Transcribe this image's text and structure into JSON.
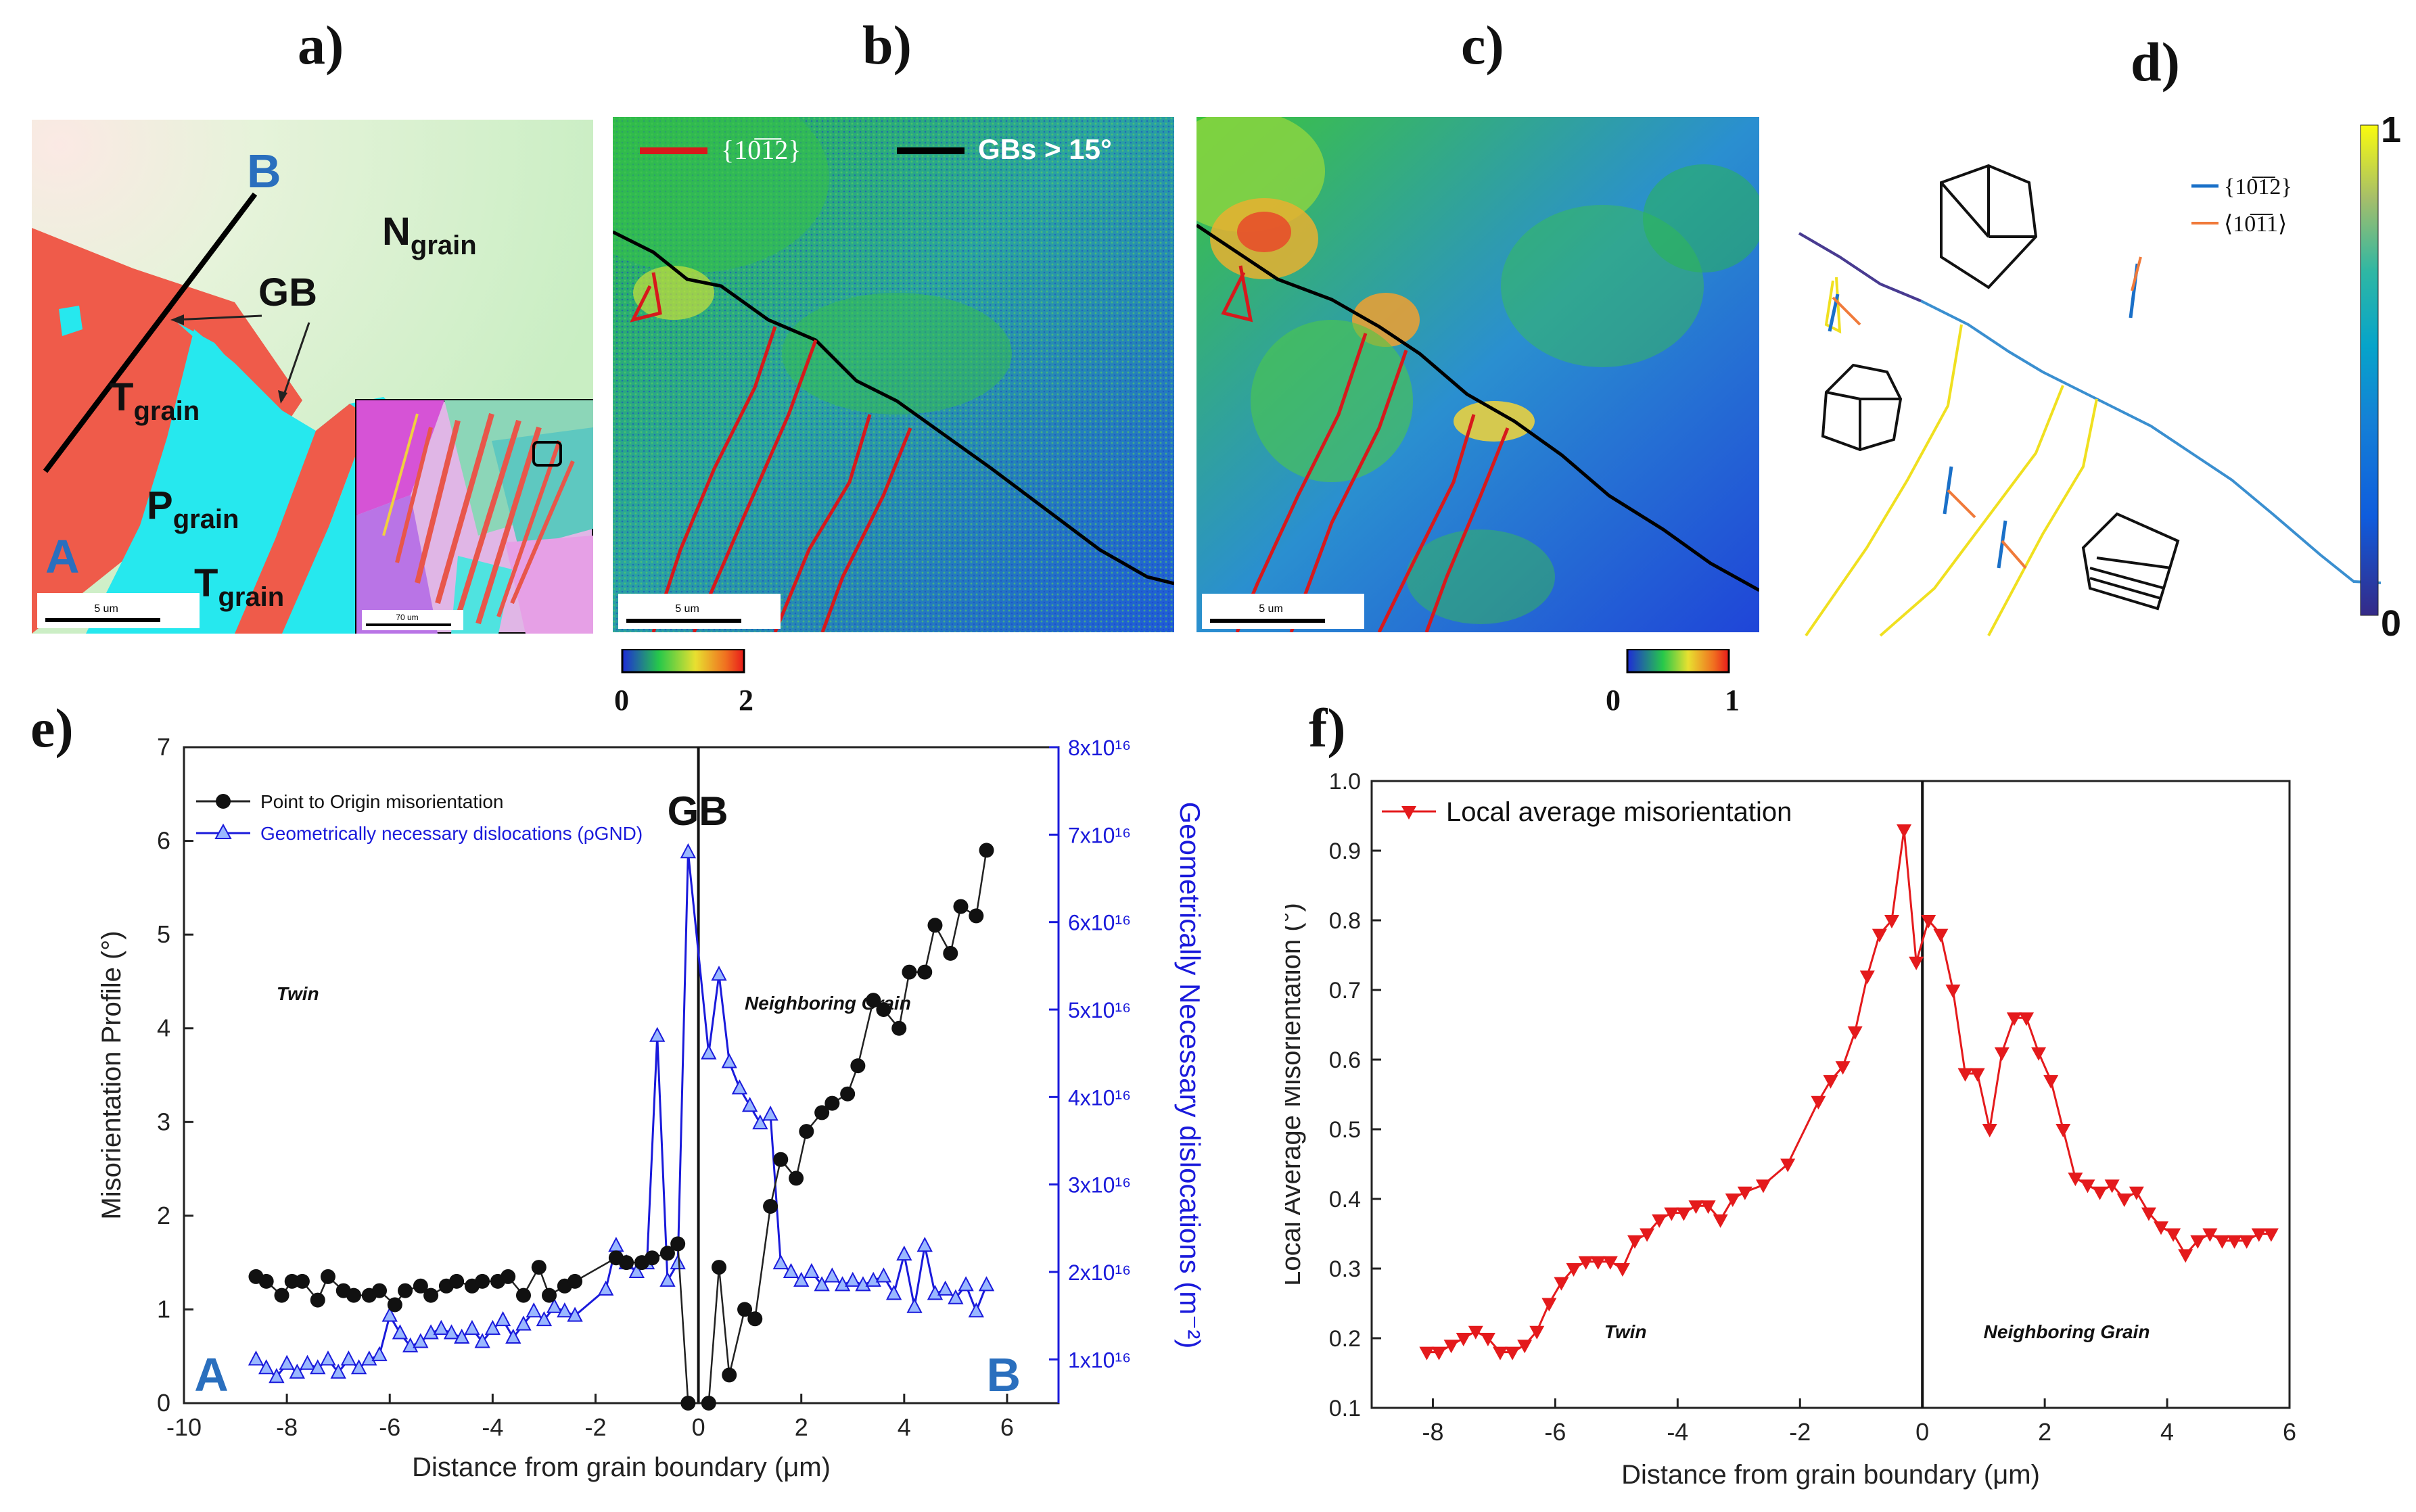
{
  "panel_labels": {
    "a": "a)",
    "b": "b)",
    "c": "c)",
    "d": "d)",
    "e": "e)",
    "f": "f)"
  },
  "panel_a": {
    "label_A": "A",
    "label_B": "B",
    "label_GB": "GB",
    "n_grain": "N",
    "n_sub": "grain",
    "t_grain": "T",
    "t_sub": "grain",
    "p_grain": "P",
    "p_sub": "grain",
    "scale": "5 um",
    "inset_scale": "70 um"
  },
  "panel_b": {
    "legend_twin": "{10̅1̅2}",
    "legend_gb": "GBs > 15°",
    "scale": "5 um",
    "cbar_min": "0",
    "cbar_max": "2"
  },
  "panel_c": {
    "scale": "5 um",
    "cbar_min": "0",
    "cbar_max": "1"
  },
  "panel_d": {
    "legend_plane": "{10̅1̅2}",
    "legend_dir": "⟨10̅1̅1⟩",
    "cbar_max": "1",
    "cbar_min": "0"
  },
  "colors": {
    "red_twin": "#d7191c",
    "black_gb": "#000000",
    "blue": "#1a1adb",
    "panel_f_red": "#e41a1c",
    "label_blue": "#2a6fbe"
  },
  "chart_data": [
    {
      "type": "line",
      "xlabel": "Distance from grain boundary (μm)",
      "ylabel": "Misorientation Profile (°)",
      "y2label": "Geometrically Necessary dislocations (m⁻²)",
      "xlim": [
        -10,
        7
      ],
      "ylim": [
        0,
        7
      ],
      "y2lim": [
        0.5,
        8
      ],
      "xticks": [
        "-10",
        "-8",
        "-6",
        "-4",
        "-2",
        "0",
        "2",
        "4",
        "6"
      ],
      "yticks": [
        "0",
        "1",
        "2",
        "3",
        "4",
        "5",
        "6",
        "7"
      ],
      "y2ticks": [
        "1x10¹⁶",
        "2x10¹⁶",
        "3x10¹⁶",
        "4x10¹⁶",
        "5x10¹⁶",
        "6x10¹⁶",
        "7x10¹⁶",
        "8x10¹⁶"
      ],
      "annotations": {
        "gb": "GB",
        "twin": "Twin",
        "neighbor": "Neighboring Grain",
        "A": "A",
        "B": "B"
      },
      "series": [
        {
          "name": "Point to Origin misorientation",
          "x": [
            -8.6,
            -8.4,
            -8.1,
            -7.9,
            -7.7,
            -7.4,
            -7.2,
            -6.9,
            -6.7,
            -6.4,
            -6.2,
            -5.9,
            -5.7,
            -5.4,
            -5.2,
            -4.9,
            -4.7,
            -4.4,
            -4.2,
            -3.9,
            -3.7,
            -3.4,
            -3.1,
            -2.9,
            -2.6,
            -2.4,
            -1.6,
            -1.4,
            -1.1,
            -0.9,
            -0.6,
            -0.4,
            -0.2,
            0.2,
            0.4,
            0.6,
            0.9,
            1.1,
            1.4,
            1.6,
            1.9,
            2.1,
            2.4,
            2.6,
            2.9,
            3.1,
            3.4,
            3.6,
            3.9,
            4.1,
            4.4,
            4.6,
            4.9,
            5.1,
            5.4,
            5.6
          ],
          "y": [
            1.35,
            1.3,
            1.15,
            1.3,
            1.3,
            1.1,
            1.35,
            1.2,
            1.15,
            1.15,
            1.2,
            1.05,
            1.2,
            1.25,
            1.15,
            1.25,
            1.3,
            1.25,
            1.3,
            1.3,
            1.35,
            1.15,
            1.45,
            1.15,
            1.25,
            1.3,
            1.55,
            1.5,
            1.5,
            1.55,
            1.6,
            1.7,
            0.0,
            0.0,
            1.45,
            0.3,
            1.0,
            0.9,
            2.1,
            2.6,
            2.4,
            2.9,
            3.1,
            3.2,
            3.3,
            3.6,
            4.3,
            4.2,
            4.0,
            4.6,
            4.6,
            5.1,
            4.8,
            5.3,
            5.2,
            5.9
          ]
        },
        {
          "name": "Geometrically necessary dislocations (ρGND)",
          "x": [
            -8.6,
            -8.4,
            -8.2,
            -8.0,
            -7.8,
            -7.6,
            -7.4,
            -7.2,
            -7.0,
            -6.8,
            -6.6,
            -6.4,
            -6.2,
            -6.0,
            -5.8,
            -5.6,
            -5.4,
            -5.2,
            -5.0,
            -4.8,
            -4.6,
            -4.4,
            -4.2,
            -4.0,
            -3.8,
            -3.6,
            -3.4,
            -3.2,
            -3.0,
            -2.8,
            -2.6,
            -2.4,
            -1.8,
            -1.6,
            -1.4,
            -1.2,
            -1.0,
            -0.8,
            -0.6,
            -0.4,
            -0.2,
            0.2,
            0.4,
            0.6,
            0.8,
            1.0,
            1.2,
            1.4,
            1.6,
            1.8,
            2.0,
            2.2,
            2.4,
            2.6,
            2.8,
            3.0,
            3.2,
            3.4,
            3.6,
            3.8,
            4.0,
            4.2,
            4.4,
            4.6,
            4.8,
            5.0,
            5.2,
            5.4,
            5.6
          ],
          "y": [
            1.0,
            0.9,
            0.8,
            0.95,
            0.85,
            0.95,
            0.9,
            1.0,
            0.85,
            1.0,
            0.9,
            1.0,
            1.05,
            1.5,
            1.3,
            1.15,
            1.2,
            1.3,
            1.35,
            1.3,
            1.25,
            1.35,
            1.2,
            1.35,
            1.45,
            1.25,
            1.4,
            1.55,
            1.45,
            1.6,
            1.55,
            1.5,
            1.8,
            2.3,
            2.1,
            2.0,
            2.1,
            4.7,
            1.9,
            2.1,
            6.8,
            4.5,
            5.4,
            4.4,
            4.1,
            3.9,
            3.7,
            3.8,
            2.1,
            2.0,
            1.9,
            2.0,
            1.85,
            1.95,
            1.85,
            1.9,
            1.85,
            1.9,
            1.95,
            1.75,
            2.2,
            1.6,
            2.3,
            1.75,
            1.8,
            1.7,
            1.85,
            1.55,
            1.85
          ]
        }
      ]
    },
    {
      "type": "line",
      "xlabel": "Distance from grain boundary (μm)",
      "ylabel": "Local Average Misorientation (°)",
      "xlim": [
        -9,
        6
      ],
      "ylim": [
        0.1,
        1.0
      ],
      "xticks": [
        "-8",
        "-6",
        "-4",
        "-2",
        "0",
        "2",
        "4",
        "6"
      ],
      "yticks": [
        "0.1",
        "0.2",
        "0.3",
        "0.4",
        "0.5",
        "0.6",
        "0.7",
        "0.8",
        "0.9",
        "1.0"
      ],
      "annotations": {
        "twin": "Twin",
        "neighbor": "Neighboring Grain"
      },
      "series": [
        {
          "name": "Local average misorientation",
          "x": [
            -8.1,
            -7.9,
            -7.7,
            -7.5,
            -7.3,
            -7.1,
            -6.9,
            -6.7,
            -6.5,
            -6.3,
            -6.1,
            -5.9,
            -5.7,
            -5.5,
            -5.3,
            -5.1,
            -4.9,
            -4.7,
            -4.5,
            -4.3,
            -4.1,
            -3.9,
            -3.7,
            -3.5,
            -3.3,
            -3.1,
            -2.9,
            -2.6,
            -2.2,
            -1.7,
            -1.5,
            -1.3,
            -1.1,
            -0.9,
            -0.7,
            -0.5,
            -0.3,
            -0.1,
            0.1,
            0.3,
            0.5,
            0.7,
            0.9,
            1.1,
            1.3,
            1.5,
            1.7,
            1.9,
            2.1,
            2.3,
            2.5,
            2.7,
            2.9,
            3.1,
            3.3,
            3.5,
            3.7,
            3.9,
            4.1,
            4.3,
            4.5,
            4.7,
            4.9,
            5.1,
            5.3,
            5.5,
            5.7
          ],
          "y": [
            0.18,
            0.18,
            0.19,
            0.2,
            0.21,
            0.2,
            0.18,
            0.18,
            0.19,
            0.21,
            0.25,
            0.28,
            0.3,
            0.31,
            0.31,
            0.31,
            0.3,
            0.34,
            0.35,
            0.37,
            0.38,
            0.38,
            0.39,
            0.39,
            0.37,
            0.4,
            0.41,
            0.42,
            0.45,
            0.54,
            0.57,
            0.59,
            0.64,
            0.72,
            0.78,
            0.8,
            0.93,
            0.74,
            0.8,
            0.78,
            0.7,
            0.58,
            0.58,
            0.5,
            0.61,
            0.66,
            0.66,
            0.61,
            0.57,
            0.5,
            0.43,
            0.42,
            0.41,
            0.42,
            0.4,
            0.41,
            0.38,
            0.36,
            0.35,
            0.32,
            0.34,
            0.35,
            0.34,
            0.34,
            0.34,
            0.35,
            0.35
          ]
        }
      ]
    }
  ]
}
